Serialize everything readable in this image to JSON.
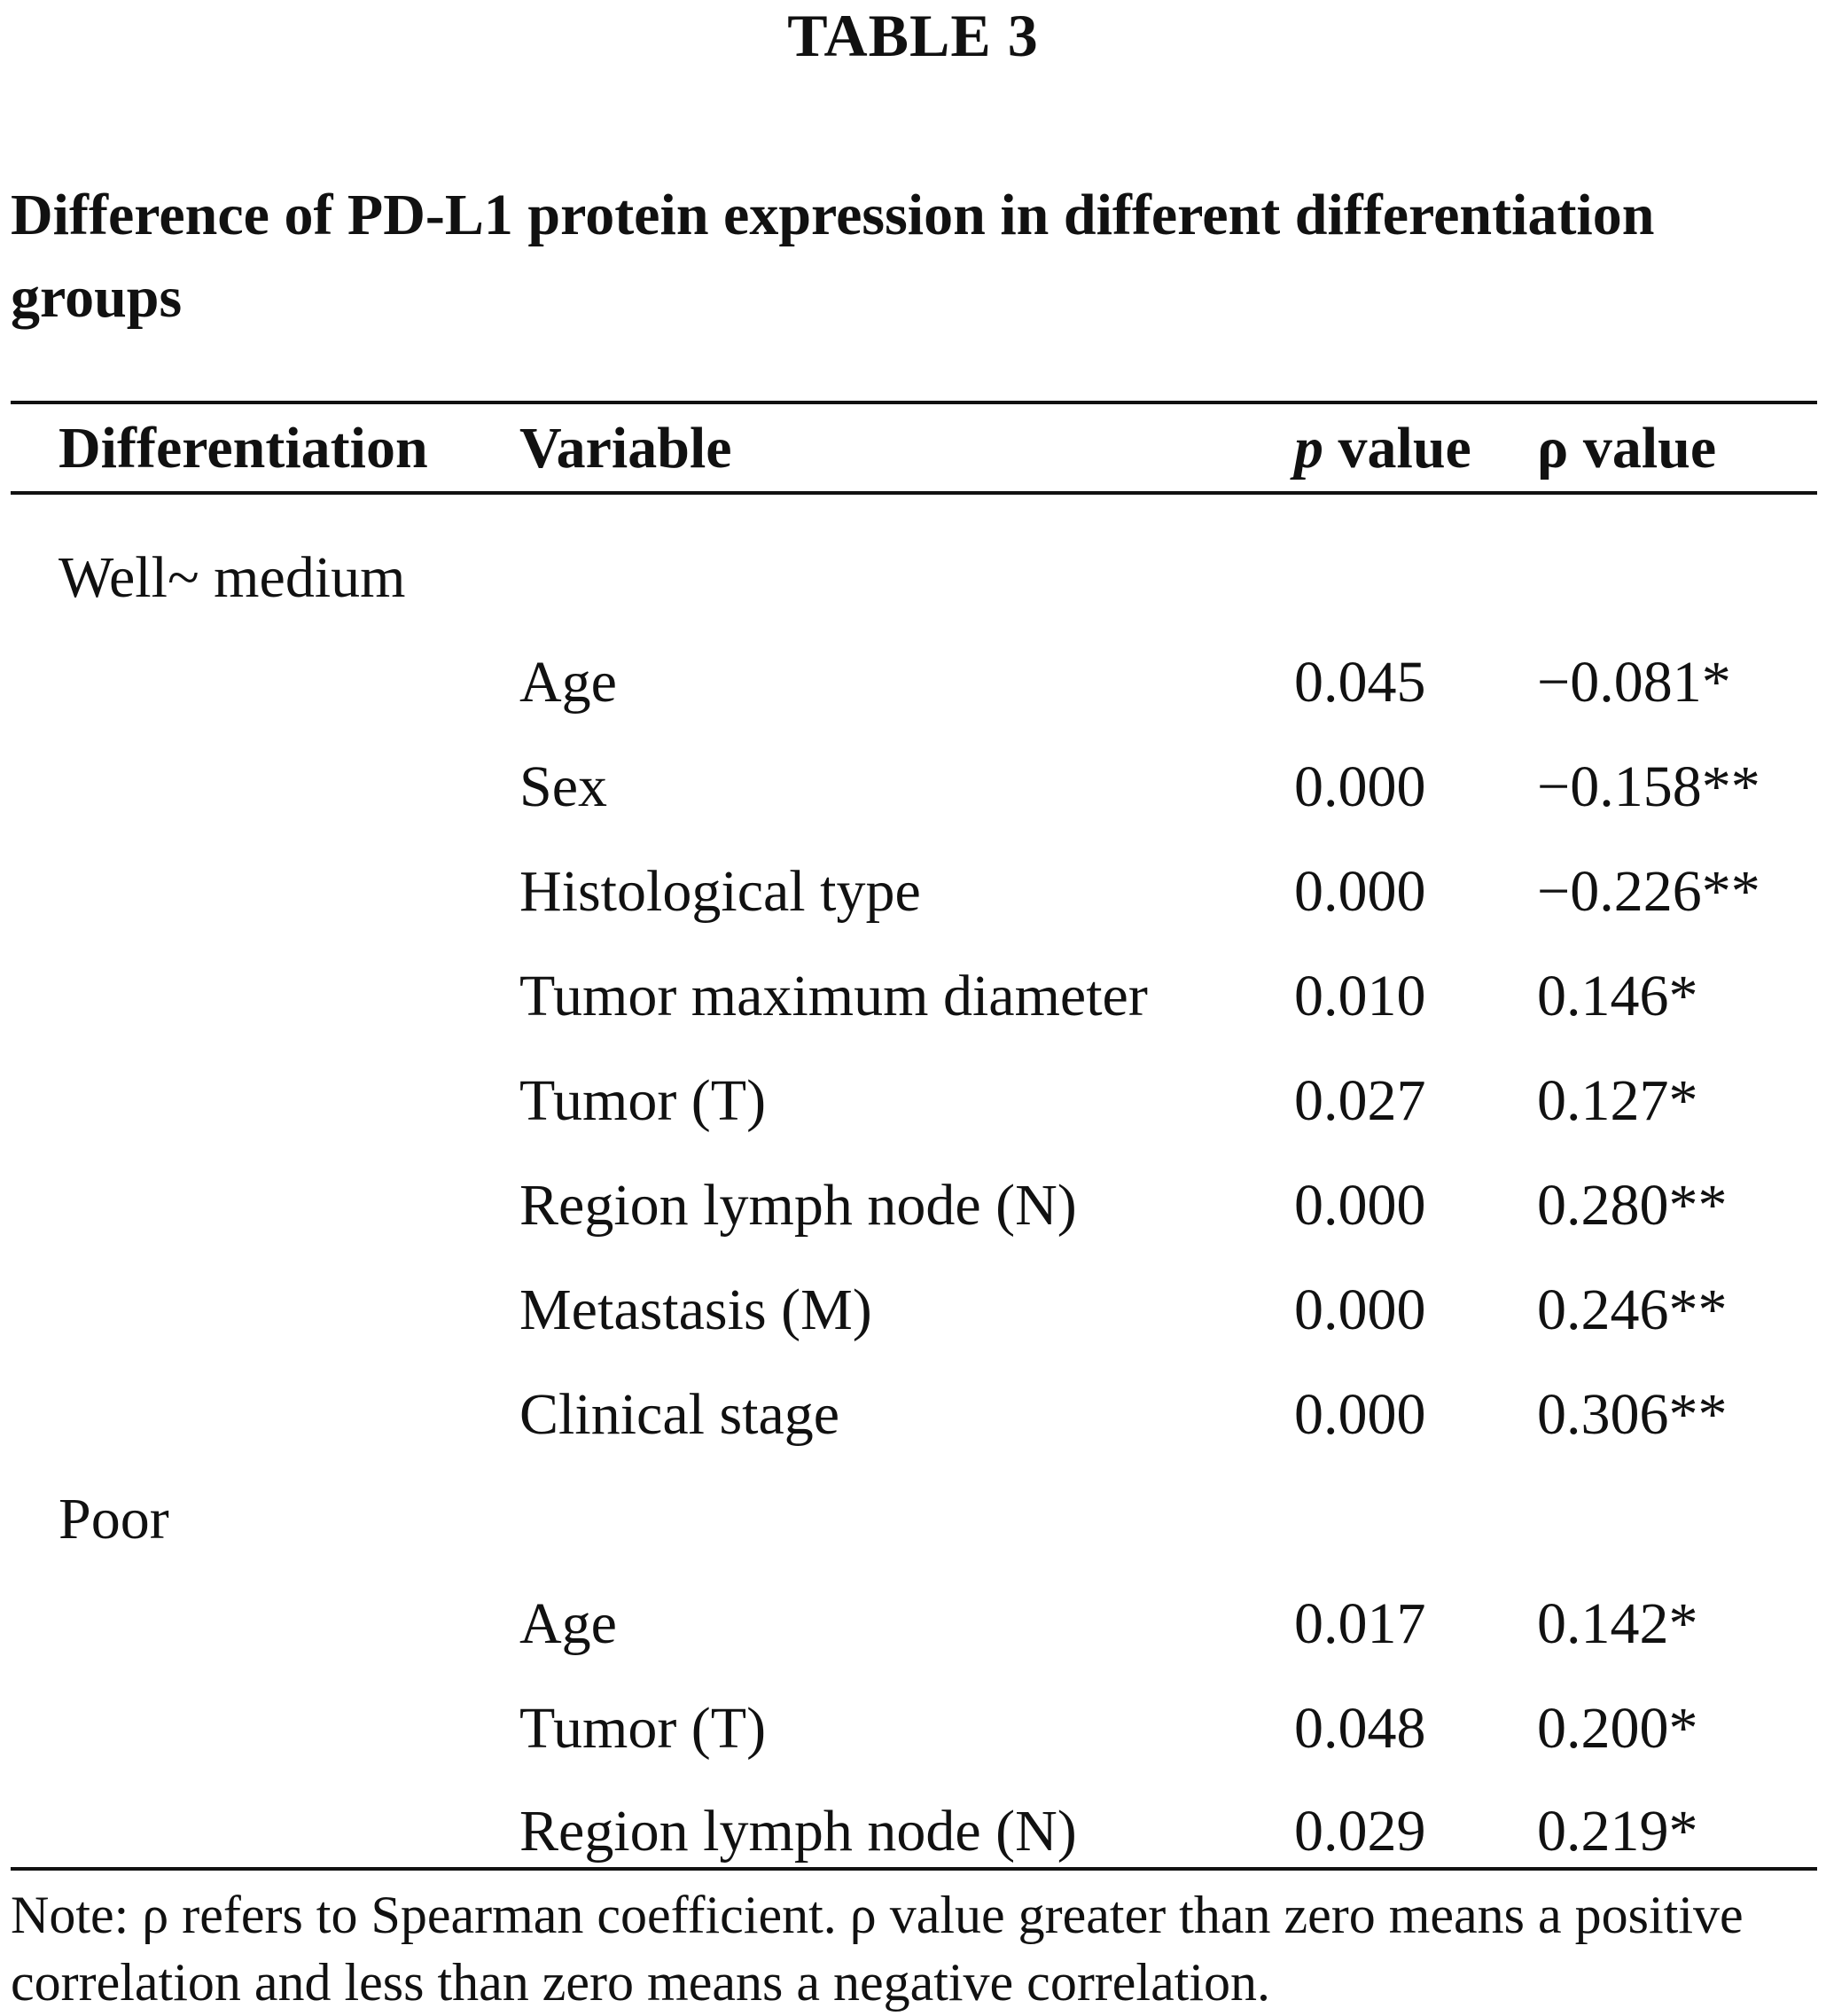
{
  "table_label": "TABLE 3",
  "caption": "Difference of PD-L1 protein expression in different differentiation groups",
  "columns": {
    "differentiation": "Differentiation",
    "variable": "Variable",
    "p_symbol": "p",
    "p_suffix": " value",
    "rho": "ρ value"
  },
  "groups": [
    {
      "name": "Well~ medium",
      "rows": [
        {
          "variable": "Age",
          "p": "0.045",
          "rho": "−0.081*"
        },
        {
          "variable": "Sex",
          "p": "0.000",
          "rho": "−0.158**"
        },
        {
          "variable": "Histological type",
          "p": "0.000",
          "rho": "−0.226**"
        },
        {
          "variable": "Tumor maximum diameter",
          "p": "0.010",
          "rho": "0.146*"
        },
        {
          "variable": "Tumor (T)",
          "p": "0.027",
          "rho": "0.127*"
        },
        {
          "variable": "Region lymph node (N)",
          "p": "0.000",
          "rho": "0.280**"
        },
        {
          "variable": "Metastasis (M)",
          "p": "0.000",
          "rho": "0.246**"
        },
        {
          "variable": "Clinical stage",
          "p": "0.000",
          "rho": "0.306**"
        }
      ]
    },
    {
      "name": "Poor",
      "rows": [
        {
          "variable": "Age",
          "p": "0.017",
          "rho": "0.142*"
        },
        {
          "variable": "Tumor (T)",
          "p": "0.048",
          "rho": "0.200*"
        },
        {
          "variable": "Region lymph node (N)",
          "p": "0.029",
          "rho": "0.219*"
        }
      ]
    }
  ],
  "note": "Note: ρ refers to Spearman coefficient. ρ value greater than zero means a positive correlation and less than zero means a negative correlation."
}
